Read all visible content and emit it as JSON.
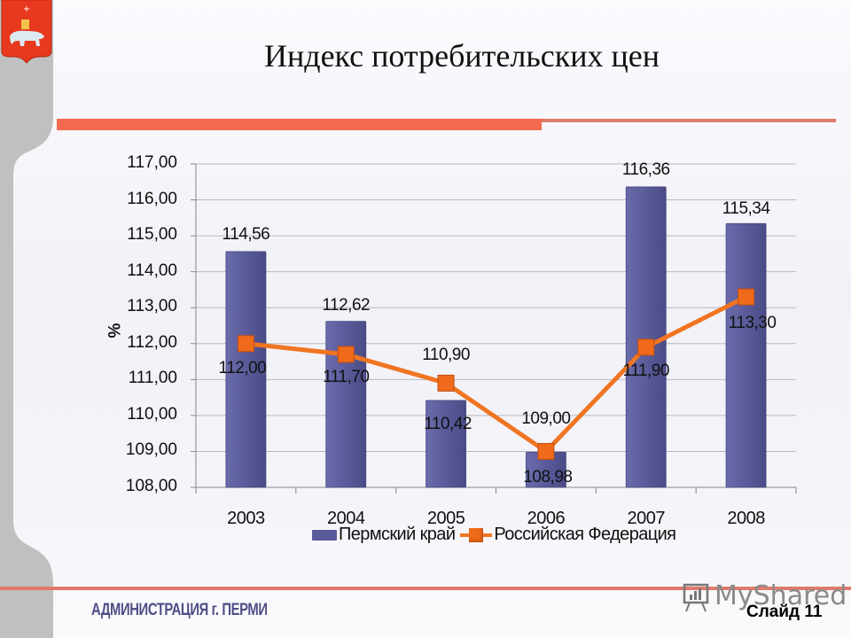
{
  "slide": {
    "title": "Индекс потребительских цен",
    "footer_org": "АДМИНИСТРАЦИЯ г. ПЕРМИ",
    "slide_number": "Слайд 11",
    "watermark": "MyShared",
    "colors": {
      "accent": "#f26b50",
      "bar": "#5a5b9a",
      "line": "#f07522",
      "sidebar": "#c0c0c0",
      "emblem": "#e8381e"
    },
    "icons": {
      "emblem": "perm-coat-of-arms-icon",
      "watermark": "presentation-board-icon"
    }
  },
  "chart_data": {
    "type": "bar+line",
    "title": "Индекс потребительских цен",
    "xlabel": "",
    "ylabel": "%",
    "ylim": [
      108,
      117
    ],
    "ytick_step": 1,
    "yticks": [
      "117,00",
      "116,00",
      "115,00",
      "114,00",
      "113,00",
      "112,00",
      "111,00",
      "110,00",
      "109,00",
      "108,00"
    ],
    "grid": true,
    "legend_position": "bottom",
    "categories": [
      "2003",
      "2004",
      "2005",
      "2006",
      "2007",
      "2008"
    ],
    "series": [
      {
        "name": "Пермский край",
        "type": "bar",
        "values": [
          114.56,
          112.62,
          110.42,
          108.98,
          116.36,
          115.34
        ],
        "labels": [
          "114,56",
          "112,62",
          "110,42",
          "108,98",
          "116,36",
          "115,34"
        ]
      },
      {
        "name": "Российская Федерация",
        "type": "line",
        "values": [
          112.0,
          111.7,
          110.9,
          109.0,
          111.9,
          113.3
        ],
        "labels": [
          "112,00",
          "111,70",
          "110,90",
          "109,00",
          "111,90",
          "113,30"
        ]
      }
    ]
  }
}
